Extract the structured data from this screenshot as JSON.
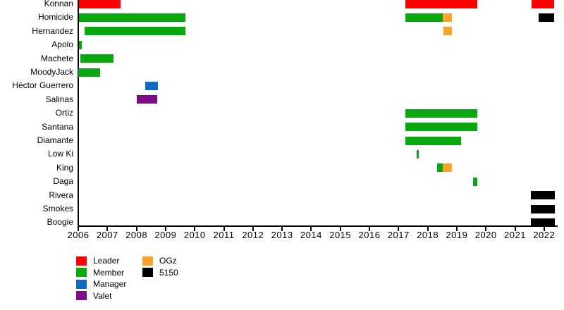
{
  "chart_data": {
    "type": "timeline",
    "description": "Stable membership timeline with colored tenure bars per person",
    "x_axis": {
      "start": 2006,
      "end": 2022,
      "ticks": [
        2006,
        2007,
        2008,
        2009,
        2010,
        2011,
        2012,
        2013,
        2014,
        2015,
        2016,
        2017,
        2018,
        2019,
        2020,
        2021,
        2022
      ]
    },
    "legend": [
      {
        "key": "leader",
        "label": "Leader",
        "color": "#f80202"
      },
      {
        "key": "member",
        "label": "Member",
        "color": "#0aa80f"
      },
      {
        "key": "manager",
        "label": "Manager",
        "color": "#0e6cc5"
      },
      {
        "key": "valet",
        "label": "Valet",
        "color": "#7d0d87"
      },
      {
        "key": "ogz",
        "label": "OGz",
        "color": "#f9a22c"
      },
      {
        "key": "s5150",
        "label": "5150",
        "color": "#000000"
      }
    ],
    "rows": [
      {
        "label": "Konnan",
        "segments": [
          {
            "role": "leader",
            "start": 2006.02,
            "end": 2007.45
          },
          {
            "role": "leader",
            "start": 2017.23,
            "end": 2019.7
          },
          {
            "role": "leader",
            "start": 2021.57,
            "end": 2022.35
          }
        ]
      },
      {
        "label": "Homicide",
        "segments": [
          {
            "role": "member",
            "start": 2006.02,
            "end": 2009.68
          },
          {
            "role": "member",
            "start": 2017.23,
            "end": 2018.52
          },
          {
            "role": "ogz",
            "start": 2018.52,
            "end": 2018.84
          },
          {
            "role": "s5150",
            "start": 2021.81,
            "end": 2022.35
          }
        ]
      },
      {
        "label": "Hernandez",
        "segments": [
          {
            "role": "member",
            "start": 2006.22,
            "end": 2009.68
          },
          {
            "role": "ogz",
            "start": 2018.54,
            "end": 2018.84
          }
        ]
      },
      {
        "label": "Apolo",
        "segments": [
          {
            "role": "member",
            "start": 2006.02,
            "end": 2006.13
          }
        ]
      },
      {
        "label": "Machete",
        "segments": [
          {
            "role": "member",
            "start": 2006.07,
            "end": 2007.21
          }
        ]
      },
      {
        "label": "MoodyJack",
        "segments": [
          {
            "role": "member",
            "start": 2006.0,
            "end": 2006.75
          }
        ]
      },
      {
        "label": "Héctor Guerrero",
        "segments": [
          {
            "role": "manager",
            "start": 2008.3,
            "end": 2008.74
          }
        ]
      },
      {
        "label": "Salinas",
        "segments": [
          {
            "role": "valet",
            "start": 2008.0,
            "end": 2008.72
          }
        ]
      },
      {
        "label": "Ortiz",
        "segments": [
          {
            "role": "member",
            "start": 2017.23,
            "end": 2019.7
          }
        ]
      },
      {
        "label": "Santana",
        "segments": [
          {
            "role": "member",
            "start": 2017.23,
            "end": 2019.7
          }
        ]
      },
      {
        "label": "Diamante",
        "segments": [
          {
            "role": "member",
            "start": 2017.23,
            "end": 2019.15
          }
        ]
      },
      {
        "label": "Low Ki",
        "segments": [
          {
            "role": "member",
            "start": 2017.62,
            "end": 2017.7
          }
        ]
      },
      {
        "label": "King",
        "segments": [
          {
            "role": "member",
            "start": 2018.32,
            "end": 2018.52
          },
          {
            "role": "ogz",
            "start": 2018.52,
            "end": 2018.84
          }
        ]
      },
      {
        "label": "Daga",
        "segments": [
          {
            "role": "member",
            "start": 2019.56,
            "end": 2019.7
          }
        ]
      },
      {
        "label": "Rivera",
        "segments": [
          {
            "role": "s5150",
            "start": 2021.55,
            "end": 2022.36
          }
        ]
      },
      {
        "label": "Smokes",
        "segments": [
          {
            "role": "s5150",
            "start": 2021.55,
            "end": 2022.36
          }
        ]
      },
      {
        "label": "Boogie",
        "segments": [
          {
            "role": "s5150",
            "start": 2021.55,
            "end": 2022.36
          }
        ]
      }
    ]
  }
}
